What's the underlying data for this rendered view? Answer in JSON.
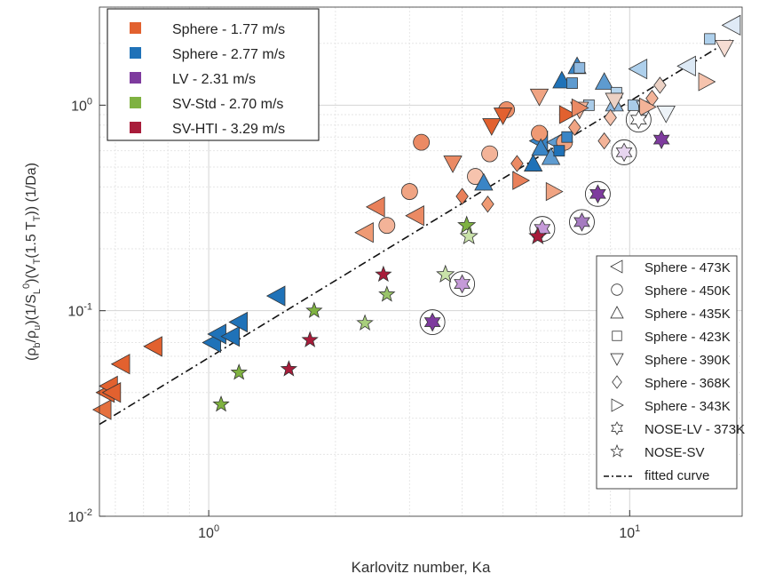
{
  "chart_data": {
    "type": "scatter",
    "title": "",
    "xlabel": "Karlovitz number, Ka",
    "ylabel": "(ρ_b/ρ_u)(1/S_L^0)(V_T(1.5 T_T)) (1/Da)",
    "xscale": "log",
    "yscale": "log",
    "xlim": [
      0.55,
      18.5
    ],
    "ylim": [
      0.01,
      3.0
    ],
    "grid": true,
    "x_ticks": [
      {
        "value": 1,
        "base": "10",
        "exp": "0"
      },
      {
        "value": 10,
        "base": "10",
        "exp": "1"
      }
    ],
    "y_ticks": [
      {
        "value": 0.01,
        "base": "10",
        "exp": "-2"
      },
      {
        "value": 0.1,
        "base": "10",
        "exp": "-1"
      },
      {
        "value": 1,
        "base": "10",
        "exp": "0"
      }
    ],
    "legend_conditions": {
      "placement": "top-left",
      "entries": [
        {
          "label": "Sphere - 1.77 m/s",
          "color": "#e2612f"
        },
        {
          "label": "Sphere - 2.77 m/s",
          "color": "#1f72b8"
        },
        {
          "label": "LV - 2.31 m/s",
          "color": "#7e3b9e"
        },
        {
          "label": "SV-Std - 2.70 m/s",
          "color": "#7fb241"
        },
        {
          "label": "SV-HTI - 3.29 m/s",
          "color": "#a81c3a"
        }
      ]
    },
    "legend_markers": {
      "placement": "bottom-right",
      "entries": [
        {
          "label": "Sphere - 473K",
          "marker": "tri-left"
        },
        {
          "label": "Sphere - 450K",
          "marker": "circle"
        },
        {
          "label": "Sphere - 435K",
          "marker": "tri-up"
        },
        {
          "label": "Sphere - 423K",
          "marker": "square"
        },
        {
          "label": "Sphere - 390K",
          "marker": "tri-down"
        },
        {
          "label": "Sphere - 368K",
          "marker": "diamond"
        },
        {
          "label": "Sphere - 343K",
          "marker": "tri-right"
        },
        {
          "label": "NOSE-LV - 373K",
          "marker": "hexagram"
        },
        {
          "label": "NOSE-SV",
          "marker": "pentagram"
        },
        {
          "label": "fitted curve",
          "marker": "dashdot-line"
        }
      ]
    },
    "fitted_curve": {
      "x": [
        0.55,
        17.5
      ],
      "y": [
        0.028,
        2.1
      ]
    },
    "series": [
      {
        "marker": "tri-left",
        "points": [
          [
            0.56,
            0.033,
            "#e5703e"
          ],
          [
            0.57,
            0.04,
            "#e2612f"
          ],
          [
            0.58,
            0.043,
            "#e2612f"
          ],
          [
            0.59,
            0.04,
            "#e2612f"
          ],
          [
            0.62,
            0.055,
            "#e2612f"
          ],
          [
            0.74,
            0.067,
            "#e2612f"
          ],
          [
            1.02,
            0.07,
            "#1f72b8"
          ],
          [
            1.05,
            0.077,
            "#1f72b8"
          ],
          [
            1.13,
            0.075,
            "#1f72b8"
          ],
          [
            1.18,
            0.088,
            "#1f72b8"
          ],
          [
            1.45,
            0.118,
            "#1f72b8"
          ],
          [
            2.35,
            0.24,
            "#ef9a74"
          ],
          [
            2.5,
            0.32,
            "#e9805a"
          ],
          [
            3.1,
            0.29,
            "#eb8a64"
          ],
          [
            6.1,
            0.67,
            "#3a85c6"
          ],
          [
            6.7,
            0.66,
            "#5e9bd0"
          ],
          [
            10.5,
            1.5,
            "#aed0ec"
          ],
          [
            13.7,
            1.55,
            "#dce9f5"
          ],
          [
            17.5,
            2.45,
            "#dfeaf6"
          ]
        ]
      },
      {
        "marker": "circle",
        "points": [
          [
            2.65,
            0.26,
            "#f3b398"
          ],
          [
            3.0,
            0.38,
            "#f0a483"
          ],
          [
            3.2,
            0.66,
            "#eb8a64"
          ],
          [
            4.3,
            0.45,
            "#f6c3ad"
          ],
          [
            4.65,
            0.58,
            "#f3b398"
          ],
          [
            5.1,
            0.95,
            "#ec8f68"
          ],
          [
            6.1,
            0.73,
            "#ef9a74"
          ],
          [
            7.0,
            0.66,
            "#f0a483"
          ]
        ]
      },
      {
        "marker": "tri-up",
        "points": [
          [
            4.5,
            0.42,
            "#3a85c6"
          ],
          [
            5.9,
            0.52,
            "#1f72b8"
          ],
          [
            6.15,
            0.62,
            "#3a85c6"
          ],
          [
            6.5,
            0.56,
            "#5e9bd0"
          ],
          [
            6.9,
            1.32,
            "#1f72b8"
          ],
          [
            7.5,
            1.55,
            "#3a85c6"
          ],
          [
            8.7,
            1.3,
            "#5e9bd0"
          ],
          [
            9.2,
            1.02,
            "#8fb9e0"
          ]
        ]
      },
      {
        "marker": "square",
        "points": [
          [
            6.8,
            0.6,
            "#1f72b8"
          ],
          [
            7.1,
            0.7,
            "#3a85c6"
          ],
          [
            7.3,
            1.28,
            "#5e9bd0"
          ],
          [
            7.6,
            1.52,
            "#8fb9e0"
          ],
          [
            8.0,
            1.0,
            "#a9cbe8"
          ],
          [
            9.3,
            1.15,
            "#b8d6ee"
          ],
          [
            10.2,
            1.0,
            "#a9cbe8"
          ],
          [
            15.5,
            2.1,
            "#aed0ec"
          ]
        ]
      },
      {
        "marker": "tri-down",
        "points": [
          [
            3.8,
            0.52,
            "#eb8a64"
          ],
          [
            4.7,
            0.79,
            "#e2612f"
          ],
          [
            5.0,
            0.89,
            "#e2612f"
          ],
          [
            6.1,
            1.1,
            "#f0a483"
          ],
          [
            7.6,
            0.95,
            "#f3b398"
          ],
          [
            9.2,
            1.05,
            "#ecd1c4"
          ],
          [
            10.9,
            0.96,
            "#e0e8f2"
          ],
          [
            12.2,
            0.91,
            "#edf3f8"
          ],
          [
            16.8,
            1.9,
            "#f6ddd3"
          ]
        ]
      },
      {
        "marker": "diamond",
        "points": [
          [
            4.0,
            0.36,
            "#e9805a"
          ],
          [
            4.6,
            0.33,
            "#ef9a74"
          ],
          [
            5.4,
            0.52,
            "#eb8a64"
          ],
          [
            7.4,
            0.78,
            "#f0a483"
          ],
          [
            8.7,
            0.67,
            "#f3b398"
          ],
          [
            9.0,
            0.87,
            "#f6c3ad"
          ],
          [
            11.3,
            1.08,
            "#f3b398"
          ],
          [
            11.8,
            1.25,
            "#ecd1c4"
          ]
        ]
      },
      {
        "marker": "tri-right",
        "points": [
          [
            5.5,
            0.43,
            "#e9805a"
          ],
          [
            6.6,
            0.38,
            "#f0a483"
          ],
          [
            7.1,
            0.9,
            "#e2612f"
          ],
          [
            7.6,
            0.97,
            "#eb8a64"
          ],
          [
            11.0,
            0.98,
            "#f3b398"
          ],
          [
            15.2,
            1.3,
            "#f6c3ad"
          ]
        ]
      },
      {
        "marker": "hexagram",
        "points": [
          [
            3.4,
            0.088,
            "#7e3b9e"
          ],
          [
            4.0,
            0.135,
            "#c59ad8"
          ],
          [
            6.2,
            0.25,
            "#c59ad8"
          ],
          [
            7.7,
            0.27,
            "#a57bc0"
          ],
          [
            8.4,
            0.37,
            "#7e3b9e"
          ],
          [
            9.7,
            0.59,
            "#e7d5ef"
          ],
          [
            10.5,
            0.85,
            "#ffffff"
          ],
          [
            11.9,
            0.68,
            "#7e3b9e"
          ]
        ]
      },
      {
        "marker": "pentagram",
        "points": [
          [
            1.07,
            0.035,
            "#7fb241"
          ],
          [
            1.18,
            0.05,
            "#7fb241"
          ],
          [
            1.55,
            0.052,
            "#a81c3a"
          ],
          [
            1.74,
            0.072,
            "#a81c3a"
          ],
          [
            1.78,
            0.1,
            "#7fb241"
          ],
          [
            2.35,
            0.087,
            "#a8cf7c"
          ],
          [
            2.6,
            0.15,
            "#a81c3a"
          ],
          [
            2.65,
            0.12,
            "#9ac46a"
          ],
          [
            3.65,
            0.15,
            "#c9e2a9"
          ],
          [
            4.1,
            0.26,
            "#7fb241"
          ],
          [
            4.15,
            0.23,
            "#c9e2a9"
          ],
          [
            6.05,
            0.23,
            "#a81c3a"
          ]
        ]
      }
    ],
    "circled_points": [
      [
        3.4,
        0.088
      ],
      [
        4.0,
        0.135
      ],
      [
        6.2,
        0.25
      ],
      [
        7.7,
        0.27
      ],
      [
        8.4,
        0.37
      ],
      [
        9.7,
        0.59
      ],
      [
        10.5,
        0.85
      ]
    ]
  }
}
